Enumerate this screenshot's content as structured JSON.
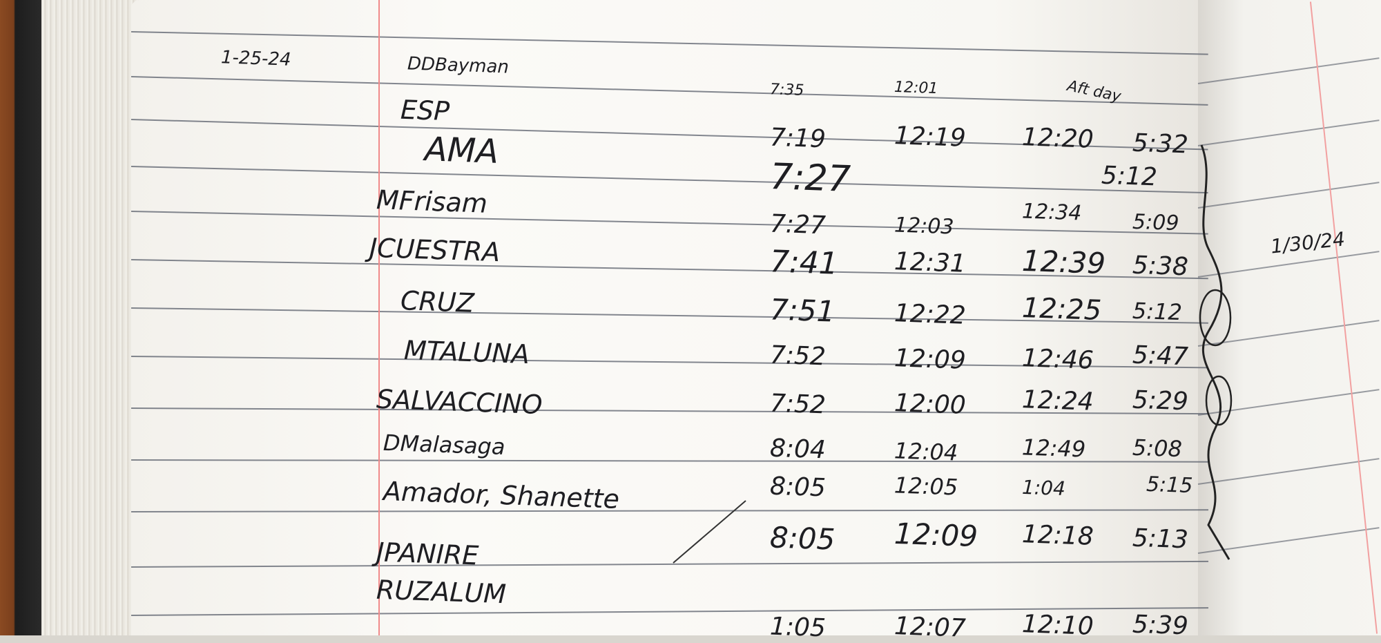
{
  "header": {
    "date": "1-25-24",
    "title": "DDBayman",
    "times": [
      "7:35",
      "12:01",
      "Aft day"
    ]
  },
  "rows": [
    {
      "name": "ESP",
      "times": []
    },
    {
      "name": "AMA",
      "times": [
        "7:19",
        "12:19",
        "12:20",
        "5:32"
      ]
    },
    {
      "name": "",
      "times": [
        "7:27",
        "",
        "",
        "5:12"
      ]
    },
    {
      "name": "MFrisam",
      "times": [
        "7:27",
        "12:03",
        "12:34",
        "5:09"
      ]
    },
    {
      "name": "JCUESTRA",
      "times": [
        "7:41",
        "12:31",
        "12:39",
        "5:38"
      ]
    },
    {
      "name": "CRUZ",
      "times": [
        "7:51",
        "12:22",
        "12:25",
        "5:12"
      ]
    },
    {
      "name": "MTALUNA",
      "times": [
        "7:52",
        "12:09",
        "12:46",
        "5:47"
      ]
    },
    {
      "name": "SALVACCINO",
      "times": [
        "7:52",
        "12:00",
        "12:24",
        "5:29"
      ]
    },
    {
      "name": "DMalasaga",
      "times": [
        "8:04",
        "12:04",
        "12:49",
        "5:08"
      ]
    },
    {
      "name": "Amador, Shanette",
      "times": [
        "8:05",
        "12:05",
        "1:04",
        "5:15"
      ]
    },
    {
      "name": "JPANIRE",
      "times": [
        "8:05",
        "12:09",
        "12:18",
        "5:13"
      ]
    },
    {
      "name": "RUZALUM",
      "times": []
    },
    {
      "name": "",
      "times": [
        "1:05",
        "12:07",
        "12:10",
        "5:39"
      ]
    }
  ],
  "right_page": {
    "date": "1/30/24"
  }
}
